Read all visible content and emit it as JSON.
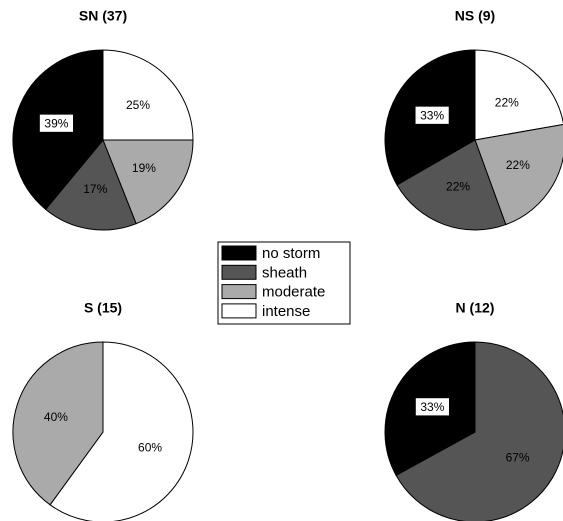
{
  "chart_data": [
    {
      "type": "pie",
      "title": "SN (37)",
      "categories": [
        "intense",
        "moderate",
        "sheath",
        "no storm"
      ],
      "values": [
        25,
        19,
        17,
        39
      ],
      "value_labels": [
        "25%",
        "19%",
        "17%",
        "39%"
      ],
      "colors": [
        "#ffffff",
        "#aaaaaa",
        "#555555",
        "#000000"
      ]
    },
    {
      "type": "pie",
      "title": "NS (9)",
      "categories": [
        "intense",
        "moderate",
        "sheath",
        "no storm"
      ],
      "values": [
        22,
        22,
        22,
        33
      ],
      "value_labels": [
        "22%",
        "22%",
        "22%",
        "33%"
      ],
      "colors": [
        "#ffffff",
        "#aaaaaa",
        "#555555",
        "#000000"
      ]
    },
    {
      "type": "pie",
      "title": "S (15)",
      "categories": [
        "intense",
        "moderate"
      ],
      "values": [
        60,
        40
      ],
      "value_labels": [
        "60%",
        "40%"
      ],
      "colors": [
        "#ffffff",
        "#aaaaaa"
      ]
    },
    {
      "type": "pie",
      "title": "N (12)",
      "categories": [
        "sheath",
        "no storm"
      ],
      "values": [
        67,
        33
      ],
      "value_labels": [
        "67%",
        "33%"
      ],
      "colors": [
        "#555555",
        "#000000"
      ]
    }
  ],
  "legend": {
    "entries": [
      {
        "name": "no storm",
        "color": "#000000"
      },
      {
        "name": "sheath",
        "color": "#555555"
      },
      {
        "name": "moderate",
        "color": "#aaaaaa"
      },
      {
        "name": "intense",
        "color": "#ffffff"
      }
    ]
  }
}
